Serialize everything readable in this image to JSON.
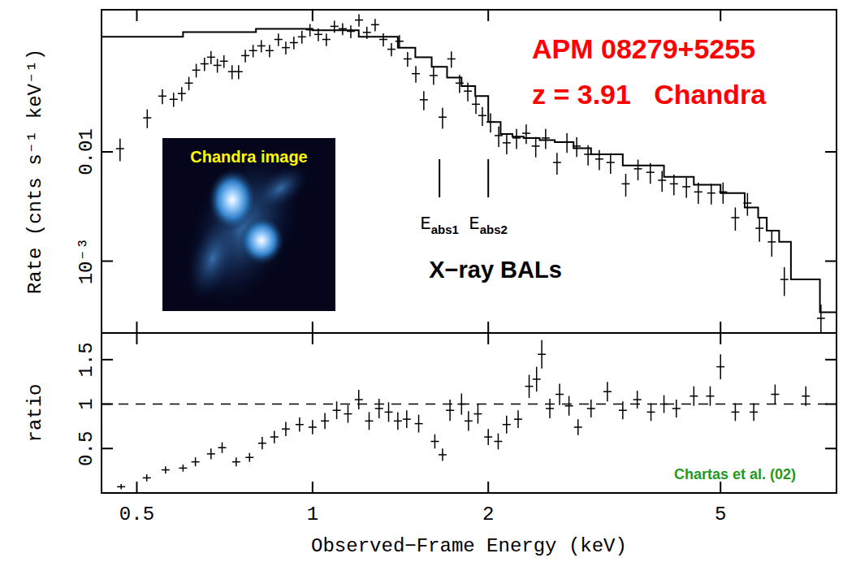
{
  "chart_data": [
    {
      "type": "scatter",
      "title": "APM 08279+5255",
      "subtitle": "z = 3.91   Chandra",
      "annotation": "X−ray BALs",
      "inset_label": "Chandra image",
      "y_label": "Rate (cnts s⁻¹ keV⁻¹)",
      "log": true,
      "tick_labels": "y",
      "xlim": [
        0.435,
        7.9
      ],
      "xticks": [
        0.5,
        1,
        2,
        5
      ],
      "ylim": [
        0.00022,
        0.2
      ],
      "yticks": [
        0.01,
        {
          "value": 0.001,
          "label": "10⁻³"
        }
      ],
      "markers": [
        {
          "x": 1.65,
          "label": "E",
          "subscript": "abs1"
        },
        {
          "x": 2.0,
          "label": "E",
          "subscript": "abs2"
        }
      ],
      "series": [
        {
          "type": "scatter",
          "marker": "cross",
          "color": "#000000",
          "x": [
            0.468,
            0.521,
            0.553,
            0.578,
            0.597,
            0.614,
            0.632,
            0.653,
            0.67,
            0.687,
            0.705,
            0.728,
            0.747,
            0.767,
            0.791,
            0.817,
            0.844,
            0.874,
            0.9,
            0.929,
            0.959,
            0.99,
            1.023,
            1.056,
            1.09,
            1.126,
            1.163,
            1.201,
            1.239,
            1.28,
            1.322,
            1.365,
            1.409,
            1.455,
            1.503,
            1.551,
            1.612,
            1.67,
            1.729,
            1.786,
            1.845,
            1.905,
            1.954,
            2.018,
            2.084,
            2.151,
            2.236,
            2.323,
            2.412,
            2.508,
            2.623,
            2.728,
            2.835,
            2.965,
            3.099,
            3.24,
            3.44,
            3.61,
            3.79,
            3.97,
            4.16,
            4.37,
            4.58,
            4.82,
            5.05,
            5.3,
            5.56,
            5.83,
            6.12,
            6.43,
            7.43
          ],
          "values": [
            0.0107,
            0.0205,
            0.0324,
            0.0303,
            0.0342,
            0.0426,
            0.056,
            0.064,
            0.0736,
            0.062,
            0.0676,
            0.0542,
            0.0542,
            0.0761,
            0.0845,
            0.0934,
            0.0845,
            0.107,
            0.09,
            0.1,
            0.113,
            0.131,
            0.119,
            0.107,
            0.141,
            0.134,
            0.127,
            0.161,
            0.124,
            0.146,
            0.107,
            0.087,
            0.103,
            0.071,
            0.052,
            0.03,
            0.05,
            0.0208,
            0.071,
            0.0426,
            0.036,
            0.0273,
            0.0215,
            0.0188,
            0.0141,
            0.0121,
            0.0134,
            0.0148,
            0.0113,
            0.0134,
            0.008,
            0.0123,
            0.0113,
            0.0095,
            0.0086,
            0.008,
            0.0051,
            0.007,
            0.0065,
            0.0055,
            0.0051,
            0.0048,
            0.0043,
            0.0042,
            0.0043,
            0.0025,
            0.0034,
            0.002,
            0.0015,
            0.00068,
            0.0003
          ],
          "errors": [
            0.0025,
            0.004,
            0.005,
            0.0045,
            0.005,
            0.006,
            0.008,
            0.009,
            0.01,
            0.009,
            0.009,
            0.008,
            0.008,
            0.01,
            0.011,
            0.012,
            0.011,
            0.014,
            0.012,
            0.013,
            0.015,
            0.017,
            0.016,
            0.014,
            0.018,
            0.017,
            0.017,
            0.021,
            0.016,
            0.019,
            0.015,
            0.012,
            0.014,
            0.011,
            0.009,
            0.006,
            0.009,
            0.0045,
            0.012,
            0.008,
            0.007,
            0.005,
            0.0042,
            0.0038,
            0.003,
            0.0026,
            0.0028,
            0.003,
            0.0024,
            0.0028,
            0.0018,
            0.0025,
            0.0023,
            0.002,
            0.0018,
            0.0017,
            0.0012,
            0.0015,
            0.0014,
            0.0012,
            0.0011,
            0.001,
            0.00095,
            0.0009,
            0.00095,
            0.0006,
            0.0008,
            0.0005,
            0.0004,
            0.0002,
            0.0001
          ]
        },
        {
          "type": "line",
          "line_style": "step",
          "color": "#000000",
          "x": [
            0.435,
            0.6,
            0.8,
            1.0,
            1.2,
            1.4,
            1.5,
            1.6,
            1.7,
            1.8,
            1.9,
            2.0,
            2.1,
            2.2,
            2.3,
            2.45,
            2.6,
            2.8,
            3.0,
            3.4,
            4.0,
            4.5,
            5.0,
            5.5,
            5.8,
            6.0,
            6.3,
            6.6,
            7.0,
            7.4,
            7.9
          ],
          "values": [
            0.113,
            0.125,
            0.134,
            0.13,
            0.113,
            0.09,
            0.0736,
            0.06,
            0.048,
            0.04,
            0.0324,
            0.0188,
            0.0146,
            0.0138,
            0.0134,
            0.0128,
            0.0123,
            0.0108,
            0.0095,
            0.0075,
            0.0059,
            0.005,
            0.0042,
            0.0031,
            0.0025,
            0.0019,
            0.0015,
            0.00068,
            0.00068,
            0.00034,
            0.00034
          ]
        }
      ]
    },
    {
      "type": "scatter",
      "x_label": "Observed−Frame Energy (keV)",
      "y_label": "ratio",
      "annotation": "Chartas et al. (02)",
      "log": "x",
      "xlim": [
        0.435,
        7.9
      ],
      "xticks": [
        0.5,
        1,
        2,
        5
      ],
      "ylim": [
        0,
        1.8
      ],
      "yticks": [
        0.5,
        1,
        1.5
      ],
      "hline": 1,
      "series": [
        {
          "type": "scatter",
          "marker": "cross",
          "color": "#000000",
          "x": [
            0.47,
            0.52,
            0.56,
            0.6,
            0.63,
            0.67,
            0.7,
            0.74,
            0.78,
            0.82,
            0.86,
            0.9,
            0.95,
            1.0,
            1.05,
            1.1,
            1.15,
            1.2,
            1.25,
            1.3,
            1.35,
            1.4,
            1.45,
            1.52,
            1.62,
            1.67,
            1.72,
            1.8,
            1.85,
            1.92,
            2.0,
            2.08,
            2.15,
            2.25,
            2.35,
            2.42,
            2.47,
            2.55,
            2.65,
            2.75,
            2.85,
            3.0,
            3.2,
            3.4,
            3.6,
            3.8,
            4.0,
            4.2,
            4.5,
            4.8,
            5.0,
            5.3,
            5.7,
            6.2,
            7.0
          ],
          "values": [
            0.07,
            0.17,
            0.26,
            0.28,
            0.35,
            0.44,
            0.51,
            0.35,
            0.4,
            0.56,
            0.63,
            0.72,
            0.77,
            0.74,
            0.81,
            0.93,
            0.89,
            1.05,
            0.81,
            0.95,
            0.91,
            0.81,
            0.83,
            0.78,
            0.58,
            0.43,
            0.93,
            1.0,
            0.81,
            0.89,
            0.63,
            0.58,
            0.77,
            0.83,
            1.2,
            1.28,
            1.56,
            0.95,
            1.11,
            0.98,
            0.74,
            0.95,
            1.14,
            0.93,
            1.05,
            0.91,
            1.0,
            0.95,
            1.09,
            1.09,
            1.42,
            0.91,
            0.91,
            1.11,
            1.09
          ],
          "errors": [
            0.03,
            0.04,
            0.04,
            0.04,
            0.05,
            0.06,
            0.06,
            0.05,
            0.05,
            0.07,
            0.07,
            0.08,
            0.08,
            0.08,
            0.09,
            0.1,
            0.1,
            0.11,
            0.1,
            0.11,
            0.11,
            0.1,
            0.1,
            0.1,
            0.08,
            0.07,
            0.12,
            0.12,
            0.11,
            0.11,
            0.09,
            0.09,
            0.1,
            0.1,
            0.13,
            0.14,
            0.16,
            0.11,
            0.12,
            0.11,
            0.09,
            0.1,
            0.11,
            0.1,
            0.1,
            0.1,
            0.1,
            0.1,
            0.11,
            0.11,
            0.14,
            0.1,
            0.1,
            0.11,
            0.11
          ]
        }
      ]
    }
  ]
}
